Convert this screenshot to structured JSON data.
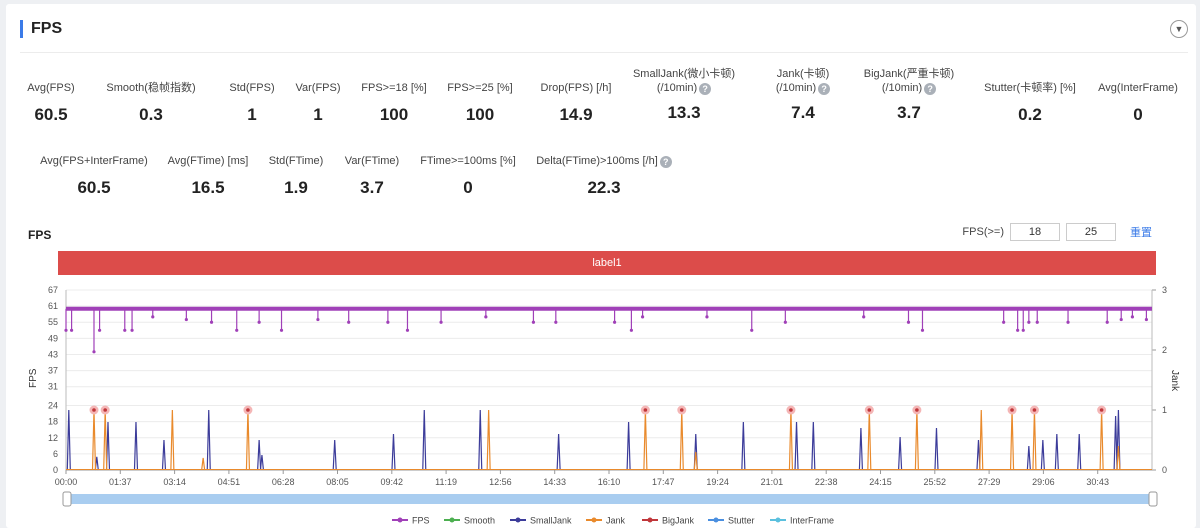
{
  "header": {
    "title": "FPS",
    "collapse_icon": "chevron-down-icon"
  },
  "metrics_row1": [
    {
      "label": "Avg(FPS)",
      "label2": "",
      "value": "60.5",
      "help": false
    },
    {
      "label": "Smooth(稳帧指数)",
      "label2": "",
      "value": "0.3",
      "help": true
    },
    {
      "label": "Std(FPS)",
      "label2": "",
      "value": "1",
      "help": false
    },
    {
      "label": "Var(FPS)",
      "label2": "",
      "value": "1",
      "help": false
    },
    {
      "label": "FPS>=18 [%]",
      "label2": "",
      "value": "100",
      "help": false
    },
    {
      "label": "FPS>=25 [%]",
      "label2": "",
      "value": "100",
      "help": false
    },
    {
      "label": "Drop(FPS) [/h]",
      "label2": "",
      "value": "14.9",
      "help": true
    },
    {
      "label": "SmallJank(微小卡顿)",
      "label2": "(/10min)",
      "value": "13.3",
      "help": true
    },
    {
      "label": "Jank(卡顿)",
      "label2": "(/10min)",
      "value": "7.4",
      "help": true
    },
    {
      "label": "BigJank(严重卡顿)",
      "label2": "(/10min)",
      "value": "3.7",
      "help": true
    },
    {
      "label": "Stutter(卡顿率) [%]",
      "label2": "",
      "value": "0.2",
      "help": false
    },
    {
      "label": "Avg(InterFrame)",
      "label2": "",
      "value": "0",
      "help": false
    }
  ],
  "metrics_row2": [
    {
      "label": "Avg(FPS+InterFrame)",
      "value": "60.5",
      "help": false
    },
    {
      "label": "Avg(FTime) [ms]",
      "value": "16.5",
      "help": false
    },
    {
      "label": "Std(FTime)",
      "value": "1.9",
      "help": false
    },
    {
      "label": "Var(FTime)",
      "value": "3.7",
      "help": false
    },
    {
      "label": "FTime>=100ms [%]",
      "value": "0",
      "help": false
    },
    {
      "label": "Delta(FTime)>100ms [/h]",
      "value": "22.3",
      "help": true
    }
  ],
  "chart_title": "FPS",
  "fps_threshold": {
    "label": "FPS(>=)",
    "value1": "18",
    "value2": "25",
    "reset_label": "重置"
  },
  "label_band": "label1",
  "chart_data": {
    "type": "line",
    "xlabel": "",
    "ylabel": "FPS",
    "y2label": "Jank",
    "ylim": [
      0,
      67
    ],
    "y2lim": [
      0,
      3
    ],
    "yticks": [
      0,
      6,
      12,
      18,
      24,
      31,
      37,
      43,
      49,
      55,
      61,
      67
    ],
    "y2ticks": [
      0,
      1,
      2,
      3
    ],
    "xticks": [
      "00:00",
      "01:37",
      "03:14",
      "04:51",
      "06:28",
      "08:05",
      "09:42",
      "11:19",
      "12:56",
      "14:33",
      "16:10",
      "17:47",
      "19:24",
      "21:01",
      "22:38",
      "24:15",
      "25:52",
      "27:29",
      "29:06",
      "30:43"
    ],
    "xlim_seconds": [
      0,
      1940
    ],
    "grid": true,
    "legend_position": "bottom",
    "series": [
      {
        "name": "FPS",
        "color": "#a040b8",
        "axis": "left",
        "baseline": 60,
        "dips": [
          [
            0,
            52
          ],
          [
            10,
            52
          ],
          [
            50,
            44
          ],
          [
            60,
            52
          ],
          [
            105,
            52
          ],
          [
            118,
            52
          ],
          [
            155,
            57
          ],
          [
            215,
            56
          ],
          [
            260,
            55
          ],
          [
            305,
            52
          ],
          [
            345,
            55
          ],
          [
            385,
            52
          ],
          [
            450,
            56
          ],
          [
            505,
            55
          ],
          [
            575,
            55
          ],
          [
            610,
            52
          ],
          [
            670,
            55
          ],
          [
            750,
            57
          ],
          [
            835,
            55
          ],
          [
            875,
            55
          ],
          [
            980,
            55
          ],
          [
            1010,
            52
          ],
          [
            1030,
            57
          ],
          [
            1145,
            57
          ],
          [
            1225,
            52
          ],
          [
            1285,
            55
          ],
          [
            1425,
            57
          ],
          [
            1505,
            55
          ],
          [
            1530,
            52
          ],
          [
            1675,
            55
          ],
          [
            1700,
            52
          ],
          [
            1710,
            52
          ],
          [
            1720,
            55
          ],
          [
            1735,
            55
          ],
          [
            1790,
            55
          ],
          [
            1860,
            55
          ],
          [
            1885,
            56
          ],
          [
            1905,
            57
          ],
          [
            1930,
            56
          ]
        ]
      },
      {
        "name": "Smooth",
        "color": "#4caf50",
        "axis": "right",
        "points": []
      },
      {
        "name": "SmallJank",
        "color": "#3c3c9a",
        "axis": "right",
        "points": [
          [
            5,
            1
          ],
          [
            55,
            0.22
          ],
          [
            75,
            0.8
          ],
          [
            125,
            0.8
          ],
          [
            175,
            0.5
          ],
          [
            255,
            1
          ],
          [
            345,
            0.5
          ],
          [
            350,
            0.25
          ],
          [
            480,
            0.5
          ],
          [
            585,
            0.6
          ],
          [
            640,
            1
          ],
          [
            740,
            1
          ],
          [
            880,
            0.6
          ],
          [
            1005,
            0.8
          ],
          [
            1125,
            0.6
          ],
          [
            1210,
            0.8
          ],
          [
            1305,
            0.8
          ],
          [
            1335,
            0.8
          ],
          [
            1420,
            0.7
          ],
          [
            1490,
            0.55
          ],
          [
            1555,
            0.7
          ],
          [
            1630,
            0.5
          ],
          [
            1720,
            0.4
          ],
          [
            1745,
            0.5
          ],
          [
            1770,
            0.6
          ],
          [
            1810,
            0.6
          ],
          [
            1875,
            0.9
          ],
          [
            1880,
            1
          ]
        ]
      },
      {
        "name": "Jank",
        "color": "#e98a2c",
        "axis": "right",
        "points": [
          [
            50,
            1
          ],
          [
            70,
            1
          ],
          [
            190,
            1
          ],
          [
            245,
            0.2
          ],
          [
            325,
            1
          ],
          [
            755,
            1
          ],
          [
            1035,
            1
          ],
          [
            1100,
            1
          ],
          [
            1125,
            0.3
          ],
          [
            1295,
            1
          ],
          [
            1435,
            1
          ],
          [
            1520,
            1
          ],
          [
            1635,
            1
          ],
          [
            1690,
            1
          ],
          [
            1730,
            1
          ],
          [
            1850,
            1
          ],
          [
            1880,
            0.4
          ]
        ]
      },
      {
        "name": "BigJank",
        "color": "#c0363a",
        "axis": "right",
        "markers": [
          50,
          70,
          325,
          1035,
          1100,
          1295,
          1435,
          1520,
          1690,
          1730,
          1850
        ]
      },
      {
        "name": "Stutter",
        "color": "#4a8fe0",
        "axis": "right",
        "points": []
      },
      {
        "name": "InterFrame",
        "color": "#5bc0de",
        "axis": "right",
        "points": []
      }
    ]
  }
}
